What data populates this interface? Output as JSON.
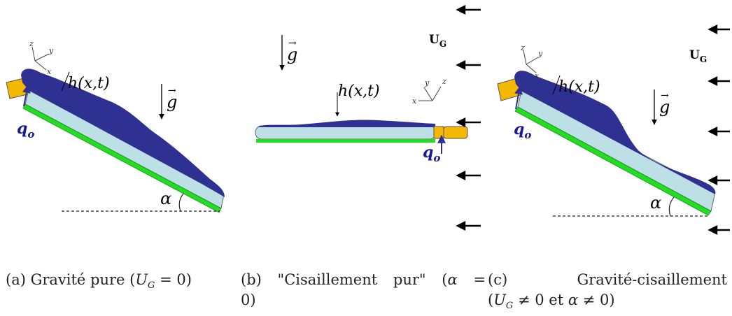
{
  "panels": [
    {
      "id": "a",
      "labels": {
        "height": "h(x,t)",
        "gravity": "g",
        "flow": "q",
        "flow_sub": "o",
        "angle": "α",
        "axes": [
          "z",
          "y",
          "x"
        ]
      }
    },
    {
      "id": "b",
      "labels": {
        "height": "h(x,t)",
        "gravity": "g",
        "flow": "q",
        "flow_sub": "o",
        "gas": "U",
        "gas_sub": "G",
        "axes": [
          "y",
          "z",
          "x"
        ]
      }
    },
    {
      "id": "c",
      "labels": {
        "height": "h(x,t)",
        "gravity": "g",
        "flow": "q",
        "flow_sub": "o",
        "angle": "α",
        "gas": "U",
        "gas_sub": "G",
        "axes": [
          "z",
          "y",
          "x"
        ]
      }
    }
  ],
  "captions": {
    "a": {
      "prefix": "(a) Gravité pure (",
      "math": "U",
      "sub": "G",
      "suffix": " = 0)"
    },
    "b": {
      "line1_prefix": "(b) \"Cisaillement pur\" (",
      "line1_math": "α",
      "line1_suffix": " =",
      "line2": "0)"
    },
    "c": {
      "line1": "(c) Gravité-cisaillement",
      "line2_prefix": "(",
      "m1": "U",
      "m1_sub": "G",
      "mid": " ≠ 0 et ",
      "m2": "α",
      "suffix": " ≠ 0)"
    }
  },
  "colors": {
    "film": "#2e3192",
    "substrate": "#bde0e6",
    "wall": "#22dd22",
    "inlet": "#f5b800",
    "arrow": "#000000"
  }
}
